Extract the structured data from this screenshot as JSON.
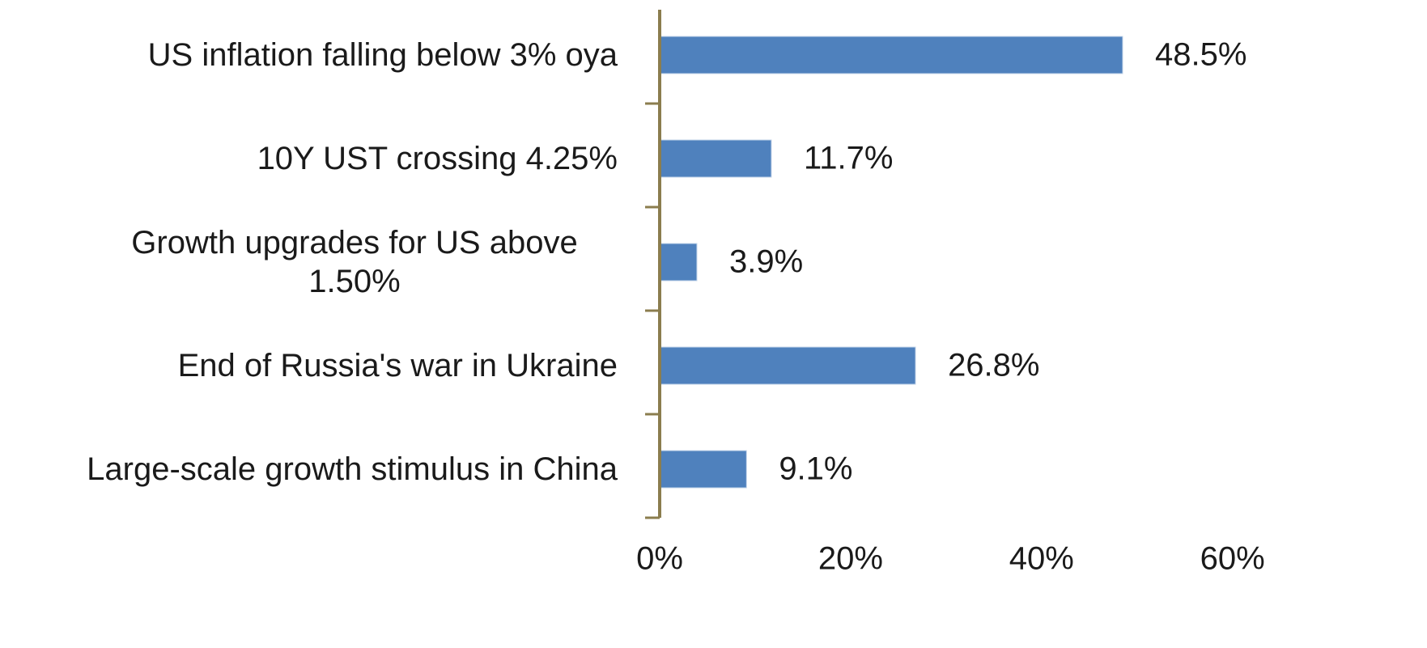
{
  "chart_data": {
    "type": "bar",
    "orientation": "horizontal",
    "categories": [
      "US inflation falling below 3% oya",
      "10Y UST crossing 4.25%",
      "Growth upgrades for US above 1.50%",
      "End of Russia's war in Ukraine",
      "Large-scale growth stimulus in China"
    ],
    "values": [
      48.5,
      11.7,
      3.9,
      26.8,
      9.1
    ],
    "value_labels": [
      "48.5%",
      "11.7%",
      "3.9%",
      "26.8%",
      "9.1%"
    ],
    "color": "#4f81bd",
    "xlim": [
      0,
      60
    ],
    "xticks": [
      {
        "value": 0,
        "label": "0%"
      },
      {
        "value": 20,
        "label": "20%"
      },
      {
        "value": 40,
        "label": "40%"
      },
      {
        "value": 60,
        "label": "60%"
      }
    ],
    "grid": false
  }
}
